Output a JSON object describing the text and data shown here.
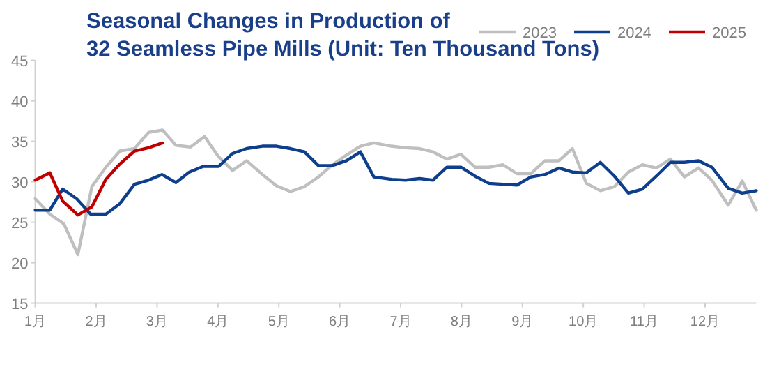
{
  "chart_data": {
    "type": "line",
    "title": "Seasonal Changes in Production of\n32 Seamless Pipe Mills (Unit: Ten Thousand Tons)",
    "xlim": [
      1,
      12.84
    ],
    "xticks": [
      {
        "value": 1,
        "label": "1月"
      },
      {
        "value": 2,
        "label": "2月"
      },
      {
        "value": 3,
        "label": "3月"
      },
      {
        "value": 4,
        "label": "4月"
      },
      {
        "value": 5,
        "label": "5月"
      },
      {
        "value": 6,
        "label": "6月"
      },
      {
        "value": 7,
        "label": "7月"
      },
      {
        "value": 8,
        "label": "8月"
      },
      {
        "value": 9,
        "label": "9月"
      },
      {
        "value": 10,
        "label": "10月"
      },
      {
        "value": 11,
        "label": "11月"
      },
      {
        "value": 12,
        "label": "12月"
      }
    ],
    "ylim": [
      15,
      45
    ],
    "yticks": [
      15,
      20,
      25,
      30,
      35,
      40,
      45
    ],
    "legend": "top right",
    "series": [
      {
        "name": "2023",
        "color": "#bfbfbf",
        "x": [
          1.0,
          1.24,
          1.47,
          1.7,
          1.93,
          2.16,
          2.39,
          2.63,
          2.86,
          3.09,
          3.31,
          3.55,
          3.78,
          4.01,
          4.24,
          4.47,
          4.73,
          4.96,
          5.19,
          5.42,
          5.65,
          5.88,
          6.11,
          6.34,
          6.56,
          6.85,
          7.08,
          7.31,
          7.53,
          7.76,
          7.99,
          8.22,
          8.45,
          8.68,
          8.91,
          9.14,
          9.37,
          9.6,
          9.82,
          10.05,
          10.28,
          10.51,
          10.74,
          10.97,
          11.2,
          11.43,
          11.66,
          11.89,
          12.11,
          12.38,
          12.61,
          12.84
        ],
        "values": [
          27.9,
          26.0,
          24.8,
          21.0,
          29.4,
          31.8,
          33.8,
          34.1,
          36.1,
          36.4,
          34.5,
          34.3,
          35.6,
          33.1,
          31.4,
          32.6,
          30.9,
          29.5,
          28.8,
          29.4,
          30.6,
          32.1,
          33.3,
          34.4,
          34.8,
          34.4,
          34.2,
          34.1,
          33.7,
          32.8,
          33.4,
          31.8,
          31.8,
          32.1,
          31.0,
          31.0,
          32.6,
          32.6,
          34.1,
          29.8,
          28.9,
          29.4,
          31.2,
          32.1,
          31.7,
          32.8,
          30.6,
          31.7,
          30.2,
          27.1,
          30.1,
          26.5
        ]
      },
      {
        "name": "2024",
        "color": "#0d3f8c",
        "x": [
          1.0,
          1.24,
          1.45,
          1.68,
          1.91,
          2.16,
          2.39,
          2.63,
          2.86,
          3.08,
          3.31,
          3.53,
          3.76,
          4.01,
          4.24,
          4.47,
          4.73,
          4.96,
          5.19,
          5.42,
          5.65,
          5.88,
          6.11,
          6.34,
          6.56,
          6.85,
          7.08,
          7.31,
          7.53,
          7.76,
          7.99,
          8.22,
          8.45,
          8.68,
          8.91,
          9.14,
          9.37,
          9.6,
          9.82,
          10.05,
          10.28,
          10.51,
          10.74,
          10.97,
          11.2,
          11.43,
          11.66,
          11.89,
          12.11,
          12.38,
          12.61,
          12.84
        ],
        "values": [
          26.5,
          26.5,
          29.1,
          27.9,
          26.0,
          26.0,
          27.3,
          29.7,
          30.2,
          30.9,
          29.9,
          31.2,
          31.9,
          31.9,
          33.5,
          34.1,
          34.4,
          34.4,
          34.1,
          33.7,
          32.0,
          32.0,
          32.6,
          33.7,
          30.6,
          30.3,
          30.2,
          30.4,
          30.2,
          31.8,
          31.8,
          30.7,
          29.8,
          29.7,
          29.6,
          30.6,
          30.9,
          31.7,
          31.2,
          31.1,
          32.4,
          30.7,
          28.6,
          29.1,
          30.7,
          32.4,
          32.4,
          32.6,
          31.8,
          29.2,
          28.6,
          28.9
        ]
      },
      {
        "name": "2025",
        "color": "#c00000",
        "x": [
          1.0,
          1.24,
          1.45,
          1.7,
          1.93,
          2.16,
          2.39,
          2.63,
          2.86,
          3.09
        ],
        "values": [
          30.2,
          31.1,
          27.6,
          25.9,
          26.9,
          30.3,
          32.2,
          33.8,
          34.2,
          34.8
        ]
      }
    ]
  }
}
